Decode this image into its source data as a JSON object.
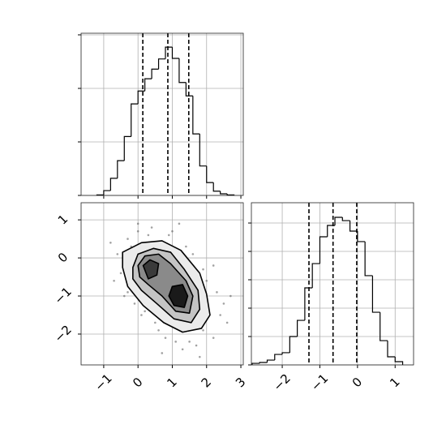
{
  "chart_data": [
    {
      "type": "histogram",
      "bins": [
        -1.2,
        -1.0,
        -0.8,
        -0.6,
        -0.4,
        -0.2,
        0.0,
        0.2,
        0.4,
        0.6,
        0.8,
        1.0,
        1.2,
        1.4,
        1.6,
        1.8,
        2.0,
        2.2,
        2.4,
        2.6,
        2.8
      ],
      "values": [
        1,
        9,
        32,
        65,
        110,
        171,
        195,
        218,
        236,
        255,
        277,
        256,
        211,
        186,
        115,
        55,
        24,
        8,
        3,
        1
      ],
      "quantiles": [
        0.14,
        0.87,
        1.48
      ],
      "xlim": [
        -1.66,
        3.07
      ],
      "xticks": [
        -1,
        0,
        1,
        2,
        3
      ],
      "ylim": [
        0,
        303
      ],
      "yticks": [
        0,
        100,
        200,
        300
      ],
      "color": "#000000",
      "grid": true
    },
    {
      "type": "contour",
      "xlim": [
        -1.66,
        3.07
      ],
      "xticks": [
        {
          "value": -1,
          "label": "−1"
        },
        0,
        1,
        2,
        3
      ],
      "ylim": [
        -2.81,
        1.45
      ],
      "yticks": [
        {
          "value": -2,
          "label": "−2"
        },
        {
          "value": -1,
          "label": "−1"
        },
        0,
        1
      ],
      "points": {
        "color": "#555555",
        "x": [
          -0.6,
          -0.3,
          0.0,
          0.4,
          0.9,
          1.4,
          1.9,
          2.3,
          2.4,
          2.2,
          1.7,
          1.1,
          0.6,
          0.1,
          -0.4,
          -0.7,
          -0.2,
          0.3,
          1.0,
          1.6,
          2.0,
          2.5,
          1.3,
          0.5,
          -0.5,
          2.6,
          0.8,
          1.5,
          -0.1,
          0.2,
          1.9,
          2.2,
          0.0,
          1.2,
          -0.8,
          2.7,
          0.7,
          1.8,
          -0.3,
          0.4
        ],
        "y": [
          0.1,
          0.5,
          0.7,
          0.8,
          0.6,
          0.3,
          -0.3,
          -0.9,
          -1.5,
          -2.1,
          -2.3,
          -2.2,
          -1.9,
          -1.5,
          -1.0,
          -0.6,
          0.3,
          0.6,
          0.7,
          0.1,
          -0.6,
          -1.2,
          -2.4,
          -1.7,
          -0.4,
          -1.7,
          -2.1,
          -2.2,
          -1.2,
          -1.4,
          -1.9,
          -0.2,
          0.9,
          0.9,
          0.4,
          -1.0,
          -2.5,
          -2.6,
          -0.9,
          -0.1
        ]
      },
      "contours": [
        {
          "color": "#ebebeb",
          "x": [
            -0.45,
            -0.45,
            0.1,
            0.7,
            1.25,
            1.8,
            2.0,
            2.1,
            1.85,
            1.3,
            0.75,
            0.15,
            -0.3
          ],
          "y": [
            -0.25,
            0.15,
            0.4,
            0.45,
            0.2,
            -0.4,
            -0.95,
            -1.5,
            -1.85,
            -1.95,
            -1.7,
            -1.25,
            -0.75
          ]
        },
        {
          "color": "#c4c4c4",
          "x": [
            -0.15,
            0.0,
            0.45,
            0.95,
            1.35,
            1.75,
            1.8,
            1.55,
            1.05,
            0.55,
            0.1,
            -0.15
          ],
          "y": [
            -0.25,
            0.1,
            0.25,
            0.15,
            -0.3,
            -0.85,
            -1.35,
            -1.7,
            -1.6,
            -1.2,
            -0.85,
            -0.55
          ]
        },
        {
          "color": "#8a8a8a",
          "x": [
            0.0,
            0.2,
            0.6,
            0.95,
            1.4,
            1.6,
            1.5,
            1.1,
            0.7,
            0.3,
            0.05
          ],
          "y": [
            -0.2,
            0.05,
            0.1,
            -0.15,
            -0.6,
            -1.0,
            -1.45,
            -1.4,
            -1.0,
            -0.7,
            -0.5
          ]
        },
        {
          "color": "#3a3a3a",
          "x": [
            0.15,
            0.35,
            0.6,
            0.55,
            0.3
          ],
          "y": [
            -0.2,
            -0.05,
            -0.15,
            -0.45,
            -0.55
          ]
        },
        {
          "color": "#1a1a1a",
          "x": [
            1.0,
            1.3,
            1.45,
            1.35,
            1.05,
            0.9
          ],
          "y": [
            -0.75,
            -0.7,
            -1.0,
            -1.3,
            -1.25,
            -1.0
          ]
        }
      ],
      "grid": true
    },
    {
      "type": "histogram",
      "bins": [
        -2.8,
        -2.6,
        -2.4,
        -2.2,
        -2.0,
        -1.8,
        -1.6,
        -1.4,
        -1.2,
        -1.0,
        -0.8,
        -0.6,
        -0.4,
        -0.2,
        0.0,
        0.2,
        0.4,
        0.6,
        0.8,
        1.0,
        1.2
      ],
      "values": [
        11,
        17,
        34,
        74,
        86,
        200,
        314,
        543,
        714,
        903,
        983,
        1040,
        1017,
        943,
        869,
        629,
        371,
        171,
        57,
        23
      ],
      "quantiles": [
        -1.29,
        -0.65,
        -0.02
      ],
      "xlim": [
        -2.82,
        1.49
      ],
      "xticks": [
        {
          "value": -2,
          "label": "−2"
        },
        {
          "value": -1,
          "label": "−1"
        },
        0,
        1
      ],
      "ylim": [
        0,
        1143
      ],
      "yticks": [
        0,
        200,
        400,
        600,
        800,
        1000
      ],
      "color": "#000000",
      "grid": true
    }
  ]
}
